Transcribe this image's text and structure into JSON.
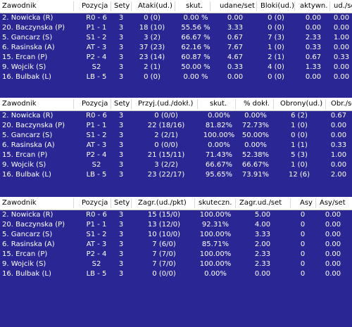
{
  "tables": [
    {
      "headers": [
        "Zawodnik",
        "Pozycja",
        "Sety",
        "Ataki(ud.)",
        "skut.",
        "udane/set",
        "Bloki(ud.)",
        "aktywn.",
        "ud./se"
      ],
      "rows": [
        [
          "2. Nowicka (R)",
          "R0 - 6",
          "3",
          "0 (0)",
          "0.00 %",
          "0.00",
          "0 (0)",
          "0.00",
          "0.00"
        ],
        [
          "20. Baczynska (P)",
          "P1 - 1",
          "3",
          "18 (10)",
          "55.56 %",
          "3.33",
          "0 (0)",
          "0.00",
          "0.00"
        ],
        [
          "5. Gancarz (S)",
          "S1 - 2",
          "3",
          "3 (2)",
          "66.67 %",
          "0.67",
          "7 (3)",
          "2.33",
          "1.00"
        ],
        [
          "6. Rasinska (A)",
          "AT - 3",
          "3",
          "37 (23)",
          "62.16 %",
          "7.67",
          "1 (0)",
          "0.33",
          "0.00"
        ],
        [
          "15. Ercan (P)",
          "P2 - 4",
          "3",
          "23 (14)",
          "60.87 %",
          "4.67",
          "2 (1)",
          "0.67",
          "0.33"
        ],
        [
          "9. Wojcik (S)",
          "S2",
          "3",
          "2 (1)",
          "50.00 %",
          "0.33",
          "4 (0)",
          "1.33",
          "0.00"
        ],
        [
          "16. Bulbak (L)",
          "LB - 5",
          "3",
          "0 (0)",
          "0.00 %",
          "0.00",
          "0 (0)",
          "0.00",
          "0.00"
        ]
      ]
    },
    {
      "headers": [
        "Zawodnik",
        "Pozycja",
        "Sety",
        "Przyj.(ud./dokł.)",
        "skut.",
        "% dokł.",
        "Obrony(ud.)",
        "Obr./se"
      ],
      "rows": [
        [
          "2. Nowicka (R)",
          "R0 - 6",
          "3",
          "0 (0/0)",
          "0.00%",
          "0.00%",
          "6 (2)",
          "0.67"
        ],
        [
          "20. Baczynska (P)",
          "P1 - 1",
          "3",
          "22 (18/16)",
          "81.82%",
          "72.73%",
          "1 (0)",
          "0.00"
        ],
        [
          "5. Gancarz (S)",
          "S1 - 2",
          "3",
          "2 (2/1)",
          "100.00%",
          "50.00%",
          "0 (0)",
          "0.00"
        ],
        [
          "6. Rasinska (A)",
          "AT - 3",
          "3",
          "0 (0/0)",
          "0.00%",
          "0.00%",
          "1 (1)",
          "0.33"
        ],
        [
          "15. Ercan (P)",
          "P2 - 4",
          "3",
          "21 (15/11)",
          "71.43%",
          "52.38%",
          "5 (3)",
          "1.00"
        ],
        [
          "9. Wojcik (S)",
          "S2",
          "3",
          "3 (2/2)",
          "66.67%",
          "66.67%",
          "1 (0)",
          "0.00"
        ],
        [
          "16. Bulbak (L)",
          "LB - 5",
          "3",
          "23 (22/17)",
          "95.65%",
          "73.91%",
          "12 (6)",
          "2.00"
        ]
      ]
    },
    {
      "headers": [
        "Zawodnik",
        "Pozycja",
        "Sety",
        "Zagr.(ud./pkt)",
        "skuteczn.",
        "Zagr.ud./set",
        "Asy",
        "Asy/set"
      ],
      "rows": [
        [
          "2. Nowicka (R)",
          "R0 - 6",
          "3",
          "15 (15/0)",
          "100.00%",
          "5.00",
          "0",
          "0.00"
        ],
        [
          "20. Baczynska (P)",
          "P1 - 1",
          "3",
          "13 (12/0)",
          "92.31%",
          "4.00",
          "0",
          "0.00"
        ],
        [
          "5. Gancarz (S)",
          "S1 - 2",
          "3",
          "10 (10/0)",
          "100.00%",
          "3.33",
          "0",
          "0.00"
        ],
        [
          "6. Rasinska (A)",
          "AT - 3",
          "3",
          "7 (6/0)",
          "85.71%",
          "2.00",
          "0",
          "0.00"
        ],
        [
          "15. Ercan (P)",
          "P2 - 4",
          "3",
          "7 (7/0)",
          "100.00%",
          "2.33",
          "0",
          "0.00"
        ],
        [
          "9. Wojcik (S)",
          "S2",
          "3",
          "7 (7/0)",
          "100.00%",
          "2.33",
          "0",
          "0.00"
        ],
        [
          "16. Bulbak (L)",
          "LB - 5",
          "3",
          "0 (0/0)",
          "0.00%",
          "0.00",
          "0",
          "0.00"
        ]
      ]
    }
  ]
}
